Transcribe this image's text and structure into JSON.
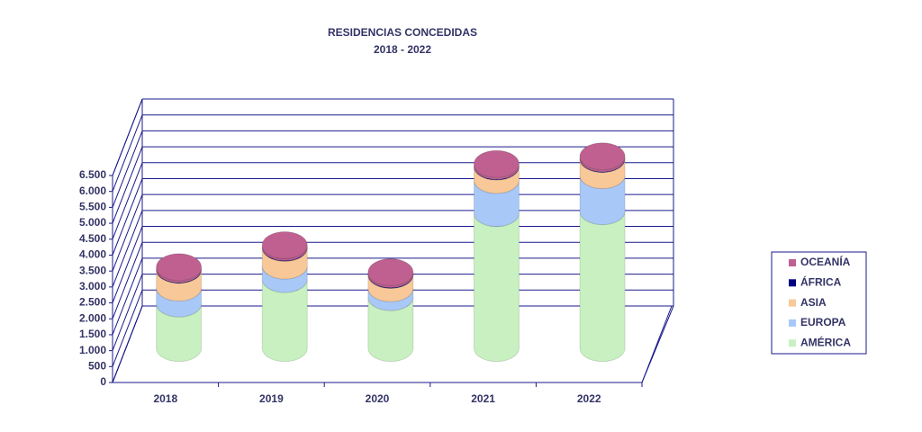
{
  "chart_data": {
    "type": "bar3d_stacked",
    "title": "RESIDENCIAS CONCEDIDAS",
    "subtitle": "2018 - 2022",
    "categories": [
      "2018",
      "2019",
      "2020",
      "2021",
      "2022"
    ],
    "series": [
      {
        "name": "AMÉRICA",
        "color": "#c8f0c0",
        "values": [
          1400,
          2170,
          1600,
          4240,
          4300
        ]
      },
      {
        "name": "EUROPA",
        "color": "#a8c8f8",
        "values": [
          500,
          420,
          280,
          1040,
          1130
        ]
      },
      {
        "name": "ASIA",
        "color": "#f8c898",
        "values": [
          560,
          560,
          420,
          420,
          510
        ]
      },
      {
        "name": "ÁFRICA",
        "color": "#000080",
        "values": [
          20,
          20,
          20,
          20,
          20
        ]
      },
      {
        "name": "OCEANÍA",
        "color": "#c06090",
        "values": [
          60,
          60,
          60,
          60,
          60
        ]
      }
    ],
    "ylim": [
      0,
      6500
    ],
    "yticks": [
      0,
      500,
      {
        "value": 1000,
        "label": "1.000"
      },
      {
        "value": 1500,
        "label": "1.500"
      },
      {
        "value": 2000,
        "label": "2.000"
      },
      {
        "value": 2500,
        "label": "2.500"
      },
      {
        "value": 3000,
        "label": "3.000"
      },
      {
        "value": 3500,
        "label": "3.500"
      },
      {
        "value": 4000,
        "label": "4.000"
      },
      {
        "value": 4500,
        "label": "4.500"
      },
      {
        "value": 5000,
        "label": "5.000"
      },
      {
        "value": 5500,
        "label": "5.500"
      },
      {
        "value": 6000,
        "label": "6.000"
      },
      {
        "value": 6500,
        "label": "6.500"
      }
    ],
    "grid": true,
    "legend": "right"
  }
}
